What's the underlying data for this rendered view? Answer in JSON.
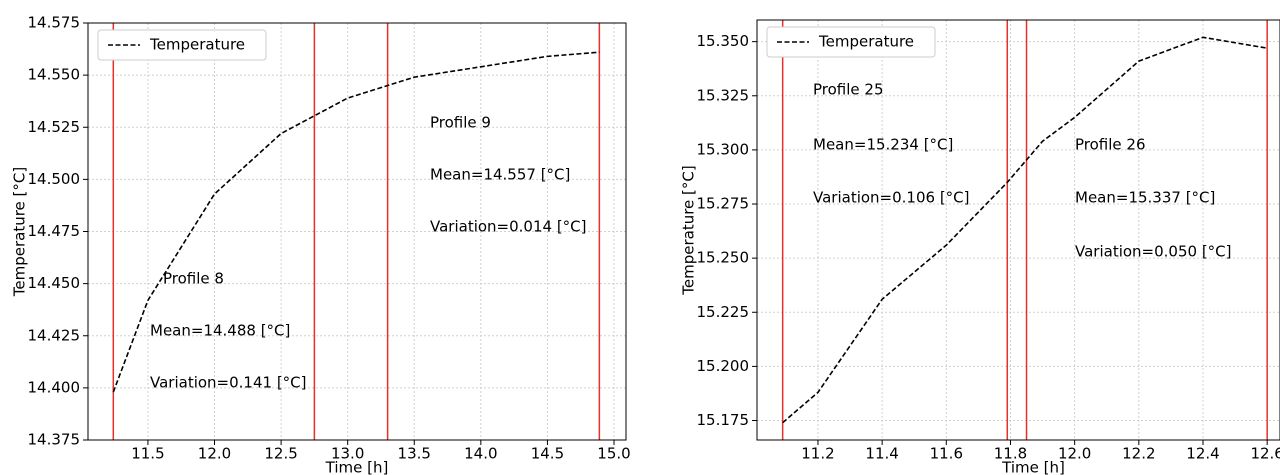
{
  "chart_data": [
    {
      "type": "line",
      "xlabel": "Time [h]",
      "ylabel": "Temperature [°C]",
      "x": [
        11.24,
        11.5,
        12.0,
        12.5,
        13.0,
        13.5,
        14.0,
        14.5,
        14.89
      ],
      "series": [
        {
          "name": "Temperature",
          "color": "#000000",
          "values": [
            14.398,
            14.442,
            14.493,
            14.522,
            14.539,
            14.549,
            14.554,
            14.559,
            14.561
          ]
        }
      ],
      "xlim": [
        11.05,
        15.09
      ],
      "ylim": [
        14.375,
        14.575
      ],
      "xticks": [
        11.5,
        {
          "value": 12,
          "label": "12.0"
        },
        12.5,
        {
          "value": 13,
          "label": "13.0"
        },
        13.5,
        {
          "value": 14,
          "label": "14.0"
        },
        14.5,
        {
          "value": 15,
          "label": "15.0"
        }
      ],
      "yticks": [
        14.375,
        {
          "value": 14.4,
          "label": "14.400"
        },
        14.425,
        {
          "value": 14.45,
          "label": "14.450"
        },
        14.475,
        {
          "value": 14.5,
          "label": "14.500"
        },
        14.525,
        {
          "value": 14.55,
          "label": "14.550"
        },
        14.575
      ],
      "vlines": {
        "color": "#e8302a",
        "values": [
          11.24,
          12.75,
          13.3,
          14.89
        ]
      },
      "annotations": [
        "Profile 8",
        "Mean=14.488 [°C]",
        "Variation=0.141 [°C]",
        "Profile 9",
        "Mean=14.557 [°C]",
        "Variation=0.014 [°C]"
      ],
      "grid": true,
      "legend": "upper left"
    },
    {
      "type": "line",
      "xlabel": "Time [h]",
      "ylabel": "Temperature [°C]",
      "x": [
        11.09,
        11.2,
        11.4,
        11.6,
        11.79,
        11.9,
        12.0,
        12.2,
        12.4,
        12.6
      ],
      "series": [
        {
          "name": "Temperature",
          "color": "#000000",
          "values": [
            15.174,
            15.188,
            15.231,
            15.256,
            15.285,
            15.304,
            15.315,
            15.341,
            15.352,
            15.347
          ]
        }
      ],
      "xlim": [
        11.01,
        12.64
      ],
      "ylim": [
        15.166,
        15.36
      ],
      "xticks": [
        11.2,
        11.4,
        11.6,
        11.8,
        {
          "value": 12,
          "label": "12.0"
        },
        12.2,
        12.4,
        12.6
      ],
      "yticks": [
        15.175,
        {
          "value": 15.2,
          "label": "15.200"
        },
        15.225,
        {
          "value": 15.25,
          "label": "15.250"
        },
        15.275,
        {
          "value": 15.3,
          "label": "15.300"
        },
        15.325,
        {
          "value": 15.35,
          "label": "15.350"
        }
      ],
      "vlines": {
        "color": "#e8302a",
        "values": [
          11.09,
          11.79,
          11.85,
          12.6
        ]
      },
      "annotations": [
        "Profile 25",
        "Mean=15.234 [°C]",
        "Variation=0.106 [°C]",
        "Profile 26",
        "Mean=15.337 [°C]",
        "Variation=0.050 [°C]"
      ],
      "grid": true,
      "legend": "upper left"
    }
  ]
}
